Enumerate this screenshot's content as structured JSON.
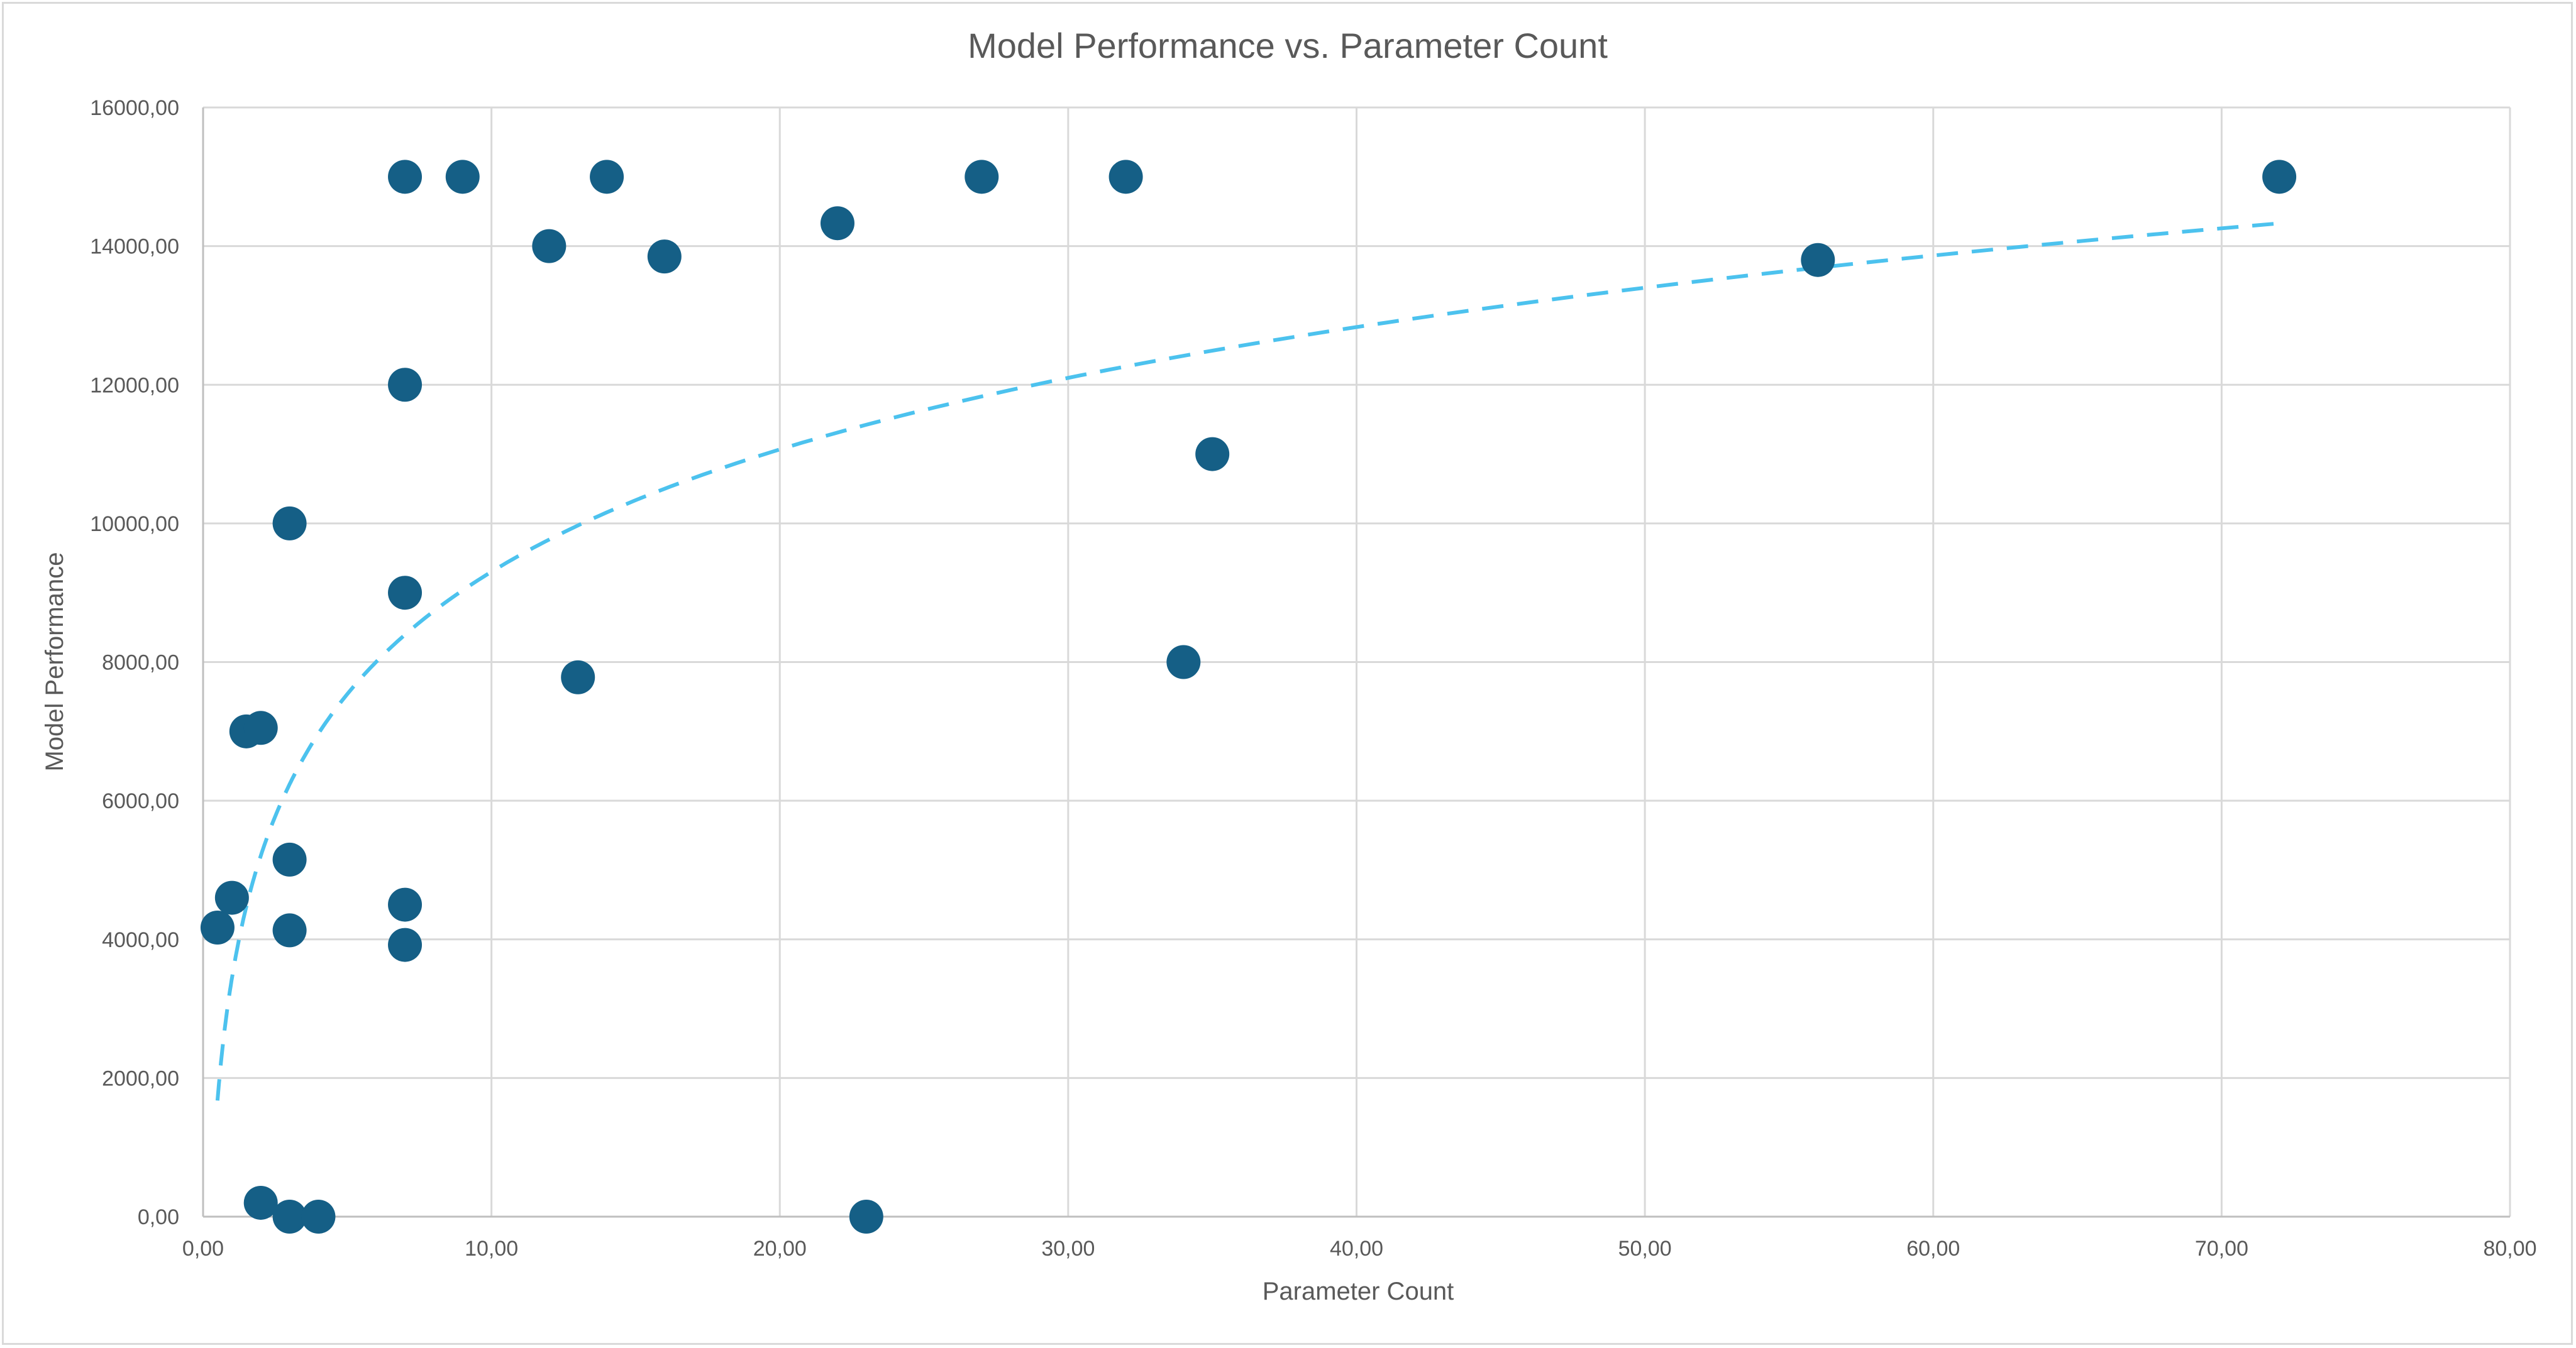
{
  "chart_data": {
    "type": "scatter",
    "title": "Model Performance vs. Parameter Count",
    "xlabel": "Parameter Count",
    "ylabel": "Model Performance",
    "xlim": [
      0,
      80
    ],
    "ylim": [
      0,
      16000
    ],
    "x_ticks": [
      "0,00",
      "10,00",
      "20,00",
      "30,00",
      "40,00",
      "50,00",
      "60,00",
      "70,00",
      "80,00"
    ],
    "y_ticks": [
      "0,00",
      "2000,00",
      "4000,00",
      "6000,00",
      "8000,00",
      "10000,00",
      "12000,00",
      "14000,00",
      "16000,00"
    ],
    "x_tick_values": [
      0,
      10,
      20,
      30,
      40,
      50,
      60,
      70,
      80
    ],
    "y_tick_values": [
      0,
      2000,
      4000,
      6000,
      8000,
      10000,
      12000,
      14000,
      16000
    ],
    "grid": true,
    "legend": "none",
    "marker_color": "#155f86",
    "trendline": {
      "type": "logarithmic",
      "style": "dashed",
      "color": "#4cc2ee",
      "x_range": [
        0.5,
        72
      ],
      "coefficients": {
        "a": 2546,
        "b": 3440
      }
    },
    "points": [
      {
        "x": 0.5,
        "y": 4170
      },
      {
        "x": 1,
        "y": 4600
      },
      {
        "x": 1.5,
        "y": 7000
      },
      {
        "x": 2,
        "y": 7050
      },
      {
        "x": 2,
        "y": 200
      },
      {
        "x": 3,
        "y": 10000
      },
      {
        "x": 3,
        "y": 5150
      },
      {
        "x": 3,
        "y": 4130
      },
      {
        "x": 3,
        "y": 0
      },
      {
        "x": 4,
        "y": 0
      },
      {
        "x": 7,
        "y": 15000
      },
      {
        "x": 7,
        "y": 12000
      },
      {
        "x": 7,
        "y": 9000
      },
      {
        "x": 7,
        "y": 4500
      },
      {
        "x": 7,
        "y": 3920
      },
      {
        "x": 9,
        "y": 15000
      },
      {
        "x": 12,
        "y": 14000
      },
      {
        "x": 13,
        "y": 7780
      },
      {
        "x": 14,
        "y": 15000
      },
      {
        "x": 16,
        "y": 13850
      },
      {
        "x": 22,
        "y": 14330
      },
      {
        "x": 23,
        "y": 0
      },
      {
        "x": 27,
        "y": 15000
      },
      {
        "x": 32,
        "y": 15000
      },
      {
        "x": 34,
        "y": 8000
      },
      {
        "x": 35,
        "y": 11000
      },
      {
        "x": 56,
        "y": 13800
      },
      {
        "x": 72,
        "y": 15000
      }
    ]
  }
}
